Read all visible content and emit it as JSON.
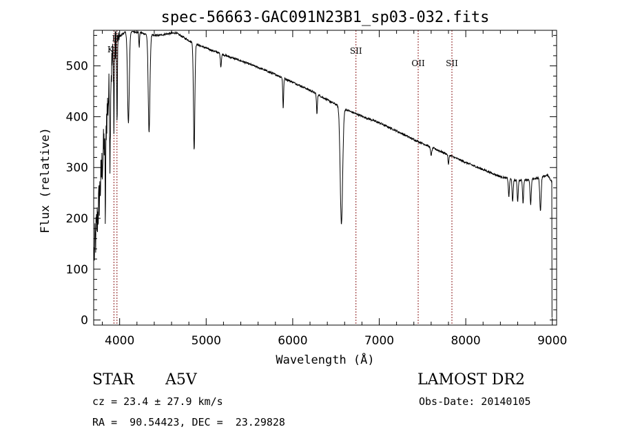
{
  "chart_data": {
    "type": "line",
    "title": "spec-56663-GAC091N23B1_sp03-032.fits",
    "xlabel": "Wavelength (Å)",
    "ylabel": "Flux (relative)",
    "xlim": [
      3700,
      9050
    ],
    "ylim": [
      -10,
      570
    ],
    "x_ticks": [
      4000,
      5000,
      6000,
      7000,
      8000,
      9000
    ],
    "y_ticks": [
      0,
      100,
      200,
      300,
      400,
      500
    ],
    "line_color": "#000000",
    "marker_color": "#8b1a1a",
    "line_markers": [
      {
        "label": "H",
        "wavelength": 3969
      },
      {
        "label": "K",
        "wavelength": 3934
      },
      {
        "label": "SII",
        "wavelength": 6731
      },
      {
        "label": "OII",
        "wavelength": 7450
      },
      {
        "label": "SII",
        "wavelength": 7840
      }
    ],
    "continuum": [
      [
        3700,
        120
      ],
      [
        3760,
        230
      ],
      [
        3800,
        310
      ],
      [
        3850,
        400
      ],
      [
        3890,
        470
      ],
      [
        3930,
        530
      ],
      [
        3980,
        555
      ],
      [
        4050,
        565
      ],
      [
        4150,
        568
      ],
      [
        4250,
        565
      ],
      [
        4350,
        560
      ],
      [
        4450,
        560
      ],
      [
        4550,
        563
      ],
      [
        4650,
        565
      ],
      [
        4750,
        555
      ],
      [
        4850,
        545
      ],
      [
        5000,
        535
      ],
      [
        5200,
        522
      ],
      [
        5400,
        510
      ],
      [
        5600,
        497
      ],
      [
        5800,
        483
      ],
      [
        6000,
        468
      ],
      [
        6200,
        452
      ],
      [
        6400,
        433
      ],
      [
        6600,
        415
      ],
      [
        6700,
        408
      ],
      [
        6800,
        401
      ],
      [
        7000,
        388
      ],
      [
        7200,
        372
      ],
      [
        7400,
        355
      ],
      [
        7600,
        340
      ],
      [
        7800,
        325
      ],
      [
        8000,
        310
      ],
      [
        8200,
        296
      ],
      [
        8400,
        282
      ],
      [
        8600,
        274
      ],
      [
        8800,
        278
      ],
      [
        8950,
        285
      ],
      [
        9000,
        270
      ]
    ],
    "absorption": [
      [
        3835,
        170,
        4
      ],
      [
        3889,
        150,
        4
      ],
      [
        3934,
        170,
        3
      ],
      [
        3970,
        165,
        4
      ],
      [
        4101,
        180,
        10
      ],
      [
        4226,
        30,
        4
      ],
      [
        4340,
        190,
        10
      ],
      [
        4861,
        210,
        8
      ],
      [
        5170,
        25,
        6
      ],
      [
        5890,
        60,
        5
      ],
      [
        6280,
        40,
        5
      ],
      [
        6563,
        230,
        14
      ],
      [
        7600,
        15,
        8
      ],
      [
        7800,
        20,
        5
      ],
      [
        8498,
        35,
        6
      ],
      [
        8542,
        45,
        6
      ],
      [
        8600,
        40,
        6
      ],
      [
        8662,
        45,
        6
      ],
      [
        8750,
        50,
        7
      ],
      [
        8863,
        65,
        8
      ]
    ]
  },
  "info": {
    "object_type": "STAR",
    "spectral_class": "A5V",
    "survey": "LAMOST DR2",
    "redshift": "cz = 23.4 ± 27.9 km/s",
    "obs_date": "Obs-Date: 20140105",
    "coords": "RA =  90.54423, DEC =  23.29828"
  }
}
